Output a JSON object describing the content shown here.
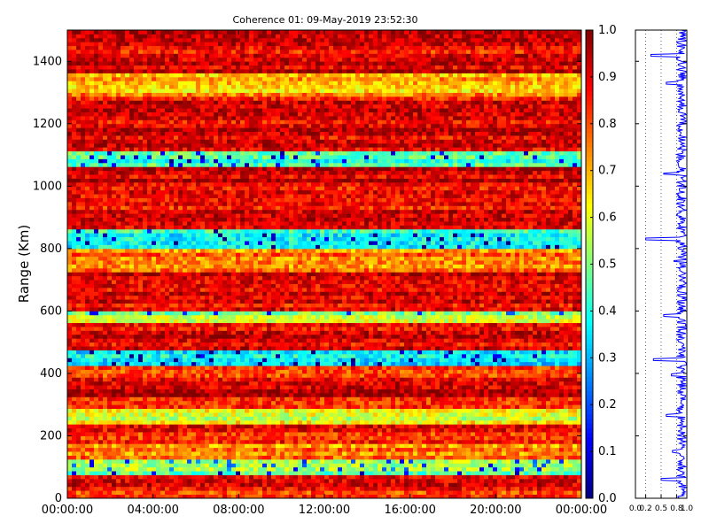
{
  "chart_data": [
    {
      "type": "heatmap",
      "title": "Coherence 01: 09-May-2019 23:52:30",
      "xlabel": "",
      "ylabel": "Range (Km)",
      "x_tick_labels": [
        "00:00:00",
        "04:00:00",
        "08:00:00",
        "12:00:00",
        "16:00:00",
        "20:00:00",
        "00:00:00"
      ],
      "y_tick_labels": [
        "0",
        "200",
        "400",
        "600",
        "800",
        "1000",
        "1200",
        "1400"
      ],
      "ylim": [
        0,
        1500
      ],
      "colorbar": {
        "colormap": "jet",
        "range": [
          0.0,
          1.0
        ],
        "tick_labels": [
          "0.0",
          "0.1",
          "0.2",
          "0.3",
          "0.4",
          "0.5",
          "0.6",
          "0.7",
          "0.8",
          "0.9",
          "1.0"
        ]
      },
      "band_profile": [
        {
          "range_km": 10,
          "value": 0.82
        },
        {
          "range_km": 35,
          "value": 0.86
        },
        {
          "range_km": 60,
          "value": 0.88
        },
        {
          "range_km": 100,
          "value": 0.5
        },
        {
          "range_km": 150,
          "value": 0.75
        },
        {
          "range_km": 200,
          "value": 0.85
        },
        {
          "range_km": 265,
          "value": 0.6
        },
        {
          "range_km": 300,
          "value": 0.85
        },
        {
          "range_km": 350,
          "value": 0.92
        },
        {
          "range_km": 400,
          "value": 0.85
        },
        {
          "range_km": 445,
          "value": 0.35
        },
        {
          "range_km": 500,
          "value": 0.9
        },
        {
          "range_km": 540,
          "value": 0.88
        },
        {
          "range_km": 585,
          "value": 0.55
        },
        {
          "range_km": 620,
          "value": 0.9
        },
        {
          "range_km": 700,
          "value": 0.9
        },
        {
          "range_km": 760,
          "value": 0.78
        },
        {
          "range_km": 830,
          "value": 0.4
        },
        {
          "range_km": 900,
          "value": 0.9
        },
        {
          "range_km": 980,
          "value": 0.88
        },
        {
          "range_km": 1040,
          "value": 0.92
        },
        {
          "range_km": 1080,
          "value": 0.45
        },
        {
          "range_km": 1150,
          "value": 0.9
        },
        {
          "range_km": 1250,
          "value": 0.9
        },
        {
          "range_km": 1330,
          "value": 0.7
        },
        {
          "range_km": 1400,
          "value": 0.92
        },
        {
          "range_km": 1450,
          "value": 0.9
        },
        {
          "range_km": 1490,
          "value": 0.9
        }
      ]
    },
    {
      "type": "line",
      "xlabel": "",
      "ylabel": "",
      "xlim": [
        0.0,
        1.0
      ],
      "ylim": [
        0,
        1500
      ],
      "x_tick_labels": [
        "0.0",
        "0.2",
        "0.5",
        "0.8",
        "1.0"
      ],
      "series": [
        {
          "color": "#0000ff",
          "points": [
            {
              "x": 0.82,
              "y": 10
            },
            {
              "x": 0.88,
              "y": 35
            },
            {
              "x": 0.5,
              "y": 60
            },
            {
              "x": 0.85,
              "y": 100
            },
            {
              "x": 0.72,
              "y": 150
            },
            {
              "x": 0.88,
              "y": 200
            },
            {
              "x": 0.6,
              "y": 265
            },
            {
              "x": 0.85,
              "y": 300
            },
            {
              "x": 0.92,
              "y": 350
            },
            {
              "x": 0.7,
              "y": 395
            },
            {
              "x": 0.35,
              "y": 445
            },
            {
              "x": 0.9,
              "y": 500
            },
            {
              "x": 0.55,
              "y": 585
            },
            {
              "x": 0.9,
              "y": 620
            },
            {
              "x": 0.88,
              "y": 700
            },
            {
              "x": 0.75,
              "y": 760
            },
            {
              "x": 0.2,
              "y": 830
            },
            {
              "x": 0.9,
              "y": 900
            },
            {
              "x": 0.85,
              "y": 980
            },
            {
              "x": 0.55,
              "y": 1040
            },
            {
              "x": 0.9,
              "y": 1080
            },
            {
              "x": 0.92,
              "y": 1150
            },
            {
              "x": 0.9,
              "y": 1250
            },
            {
              "x": 0.6,
              "y": 1330
            },
            {
              "x": 0.92,
              "y": 1400
            },
            {
              "x": 0.3,
              "y": 1420
            },
            {
              "x": 0.95,
              "y": 1460
            },
            {
              "x": 0.9,
              "y": 1490
            }
          ]
        }
      ]
    }
  ]
}
